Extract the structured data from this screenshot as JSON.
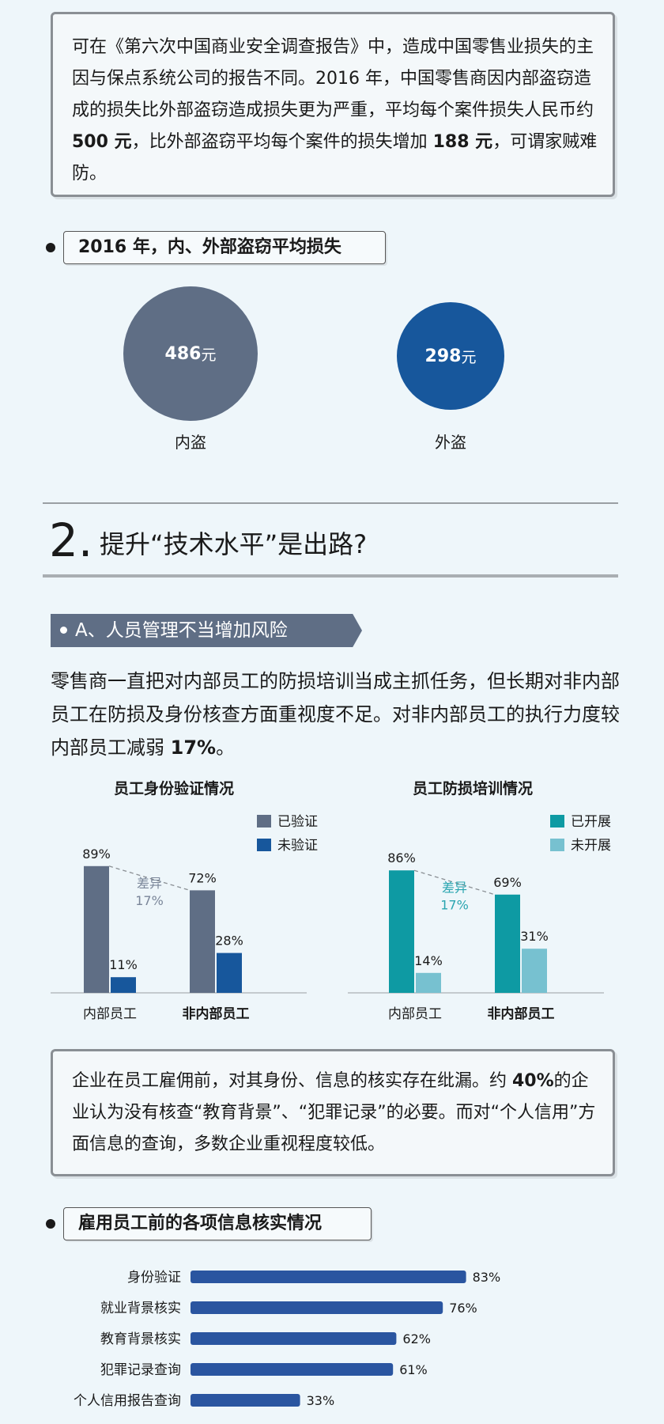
{
  "intro": {
    "t1": "可在《第六次中国商业安全调查报告》中，造成中国零售业损失的主因与保点系统公司的报告不同。2016 年，中国零售商因内部盗窃造成的损失比外部盗窃造成损失更为严重，平均每个案件损失人民币约 ",
    "b1": "500 元",
    "t2": "，比外部盗窃平均每个案件的损失增加 ",
    "b2": "188 元",
    "t3": "，可谓家贼难防。"
  },
  "loss_title": "2016 年，内、外部盗窃平均损失",
  "loss": [
    {
      "label": "内盗",
      "value": "486",
      "unit": "元",
      "color": "#5f6e85"
    },
    {
      "label": "外盗",
      "value": "298",
      "unit": "元",
      "color": "#17579c"
    }
  ],
  "section": {
    "number": "2.",
    "title": "提升“技术水平”是出路?"
  },
  "subhead": "A、人员管理不当增加风险",
  "para": {
    "t1": "零售商一直把对内部员工的防损培训当成主抓任务，但长期对非内部员工在防损及身份核查方面重视度不足。对非内部员工的执行力度较内部员工减弱 ",
    "b1": "17%",
    "t2": "。"
  },
  "middle": {
    "t1": "企业在员工雇佣前，对其身份、信息的核实存在纰漏。约 ",
    "b1": "40%",
    "t2": "的企业认为没有核查“教育背景”、“犯罪记录”的必要。而对“个人信用”方面信息的查询，多数企业重视程度较低。"
  },
  "hbar_title": "雇用员工前的各项信息核实情况",
  "chart_data": [
    {
      "type": "bar",
      "title": "员工身份验证情况",
      "categories": [
        "内部员工",
        "非内部员工"
      ],
      "series": [
        {
          "name": "已验证",
          "values": [
            89,
            72
          ],
          "color": "#5f6e85"
        },
        {
          "name": "未验证",
          "values": [
            11,
            28
          ],
          "color": "#17579c"
        }
      ],
      "value_suffix": "%",
      "annotation": {
        "line1": "差异",
        "line2": "17%",
        "color": "#7a8699"
      },
      "legend": "top-right",
      "ylim": [
        0,
        100
      ]
    },
    {
      "type": "bar",
      "title": "员工防损培训情况",
      "categories": [
        "内部员工",
        "非内部员工"
      ],
      "series": [
        {
          "name": "已开展",
          "values": [
            86,
            69
          ],
          "color": "#0e9aa3"
        },
        {
          "name": "未开展",
          "values": [
            14,
            31
          ],
          "color": "#77c1d0"
        }
      ],
      "value_suffix": "%",
      "annotation": {
        "line1": "差异",
        "line2": "17%",
        "color": "#2aa5b0"
      },
      "legend": "top-right",
      "ylim": [
        0,
        100
      ]
    },
    {
      "type": "bar",
      "orientation": "horizontal",
      "categories": [
        "身份验证",
        "就业背景核实",
        "教育背景核实",
        "犯罪记录查询",
        "个人信用报告查询"
      ],
      "values": [
        83,
        76,
        62,
        61,
        33
      ],
      "value_suffix": "%",
      "color": "#2a55a0",
      "xlim": [
        0,
        100
      ]
    }
  ]
}
